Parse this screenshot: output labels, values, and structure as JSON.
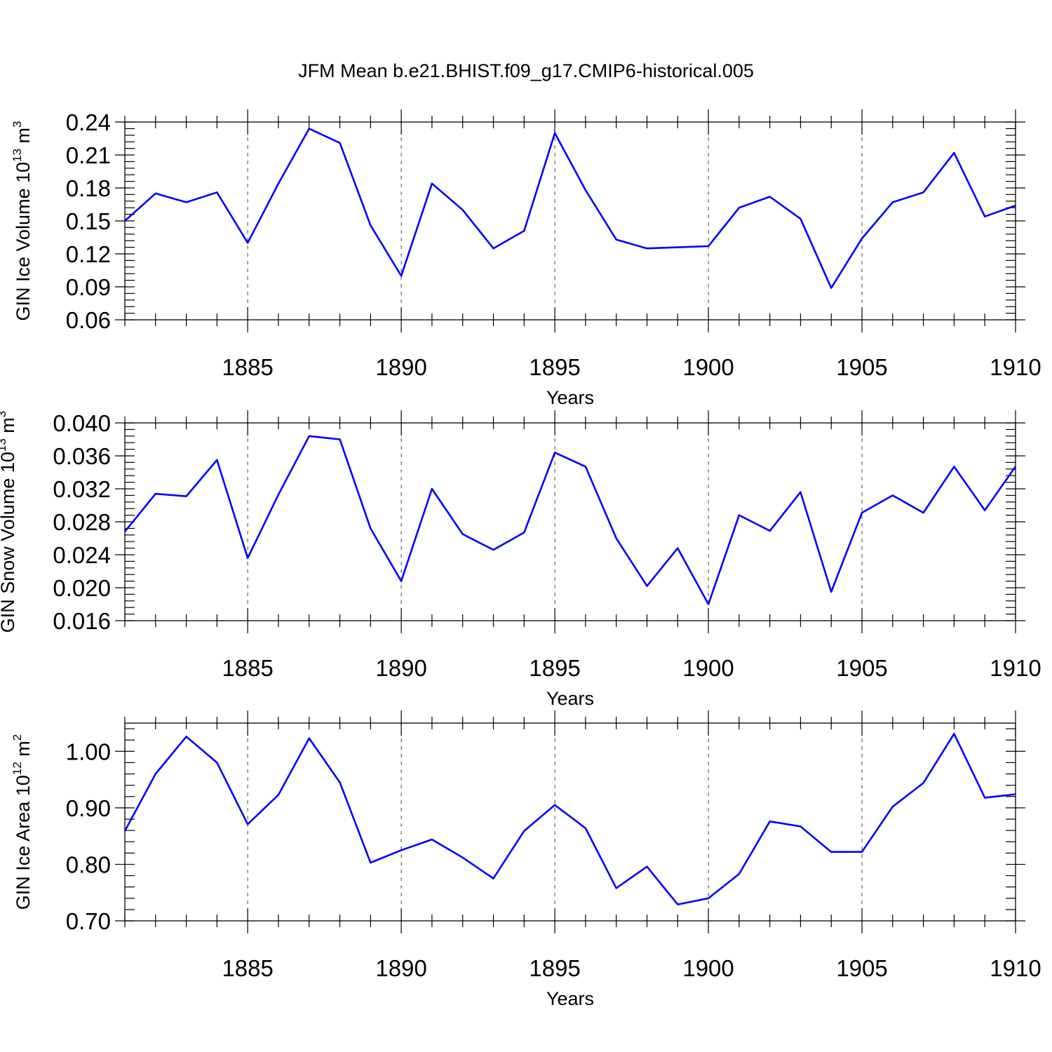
{
  "title": "JFM Mean b.e21.BHIST.f09_g17.CMIP6-historical.005",
  "colors": {
    "line": "#0000ff",
    "axis": "#000000",
    "grid": "#555555"
  },
  "chart_data": [
    {
      "type": "line",
      "ylabel": "GIN Ice Volume 10",
      "ylabel_exp": "13",
      "ylabel_unit": " m",
      "ylabel_unit_exp": "3",
      "xlabel": "Years",
      "xlim": [
        1881,
        1910
      ],
      "ylim": [
        0.06,
        0.24
      ],
      "ytick_values": [
        0.06,
        0.09,
        0.12,
        0.15,
        0.18,
        0.21,
        0.24
      ],
      "ytick_labels": [
        "0.06",
        "0.09",
        "0.12",
        "0.15",
        "0.18",
        "0.21",
        "0.24"
      ],
      "xtick_values": [
        1885,
        1890,
        1895,
        1900,
        1905,
        1910
      ],
      "xtick_labels": [
        "1885",
        "1890",
        "1895",
        "1900",
        "1905",
        "1910"
      ],
      "grid": "vertical dashed at major x ticks",
      "series": [
        {
          "name": "GIN Ice Volume",
          "x": [
            1881,
            1882,
            1883,
            1884,
            1885,
            1886,
            1887,
            1888,
            1889,
            1890,
            1891,
            1892,
            1893,
            1894,
            1895,
            1896,
            1897,
            1898,
            1899,
            1900,
            1901,
            1902,
            1903,
            1904,
            1905,
            1906,
            1907,
            1908,
            1909,
            1910
          ],
          "values": [
            0.15,
            0.175,
            0.167,
            0.176,
            0.13,
            0.184,
            0.234,
            0.221,
            0.146,
            0.1,
            0.184,
            0.16,
            0.125,
            0.141,
            0.23,
            0.178,
            0.133,
            0.125,
            0.126,
            0.127,
            0.162,
            0.172,
            0.152,
            0.089,
            0.134,
            0.167,
            0.176,
            0.212,
            0.154,
            0.164
          ]
        }
      ]
    },
    {
      "type": "line",
      "ylabel": "GIN Snow Volume 10",
      "ylabel_exp": "13",
      "ylabel_unit": " m",
      "ylabel_unit_exp": "3",
      "xlabel": "Years",
      "xlim": [
        1881,
        1910
      ],
      "ylim": [
        0.016,
        0.04
      ],
      "ytick_values": [
        0.016,
        0.02,
        0.024,
        0.028,
        0.032,
        0.036,
        0.04
      ],
      "ytick_labels": [
        "0.016",
        "0.020",
        "0.024",
        "0.028",
        "0.032",
        "0.036",
        "0.040"
      ],
      "xtick_values": [
        1885,
        1890,
        1895,
        1900,
        1905,
        1910
      ],
      "xtick_labels": [
        "1885",
        "1890",
        "1895",
        "1900",
        "1905",
        "1910"
      ],
      "grid": "vertical dashed at major x ticks",
      "series": [
        {
          "name": "GIN Snow Volume",
          "x": [
            1881,
            1882,
            1883,
            1884,
            1885,
            1886,
            1887,
            1888,
            1889,
            1890,
            1891,
            1892,
            1893,
            1894,
            1895,
            1896,
            1897,
            1898,
            1899,
            1900,
            1901,
            1902,
            1903,
            1904,
            1905,
            1906,
            1907,
            1908,
            1909,
            1910
          ],
          "values": [
            0.0268,
            0.0314,
            0.0311,
            0.0355,
            0.0236,
            0.0313,
            0.0384,
            0.038,
            0.0272,
            0.0208,
            0.032,
            0.0265,
            0.0246,
            0.0267,
            0.0364,
            0.0347,
            0.026,
            0.0202,
            0.0248,
            0.018,
            0.0288,
            0.0269,
            0.0316,
            0.0195,
            0.0291,
            0.0312,
            0.0291,
            0.0347,
            0.0294,
            0.0347
          ]
        }
      ]
    },
    {
      "type": "line",
      "ylabel": "GIN Ice Area 10",
      "ylabel_exp": "12",
      "ylabel_unit": " m",
      "ylabel_unit_exp": "2",
      "xlabel": "Years",
      "xlim": [
        1881,
        1910
      ],
      "ylim": [
        0.7,
        1.05
      ],
      "ytick_values": [
        0.7,
        0.8,
        0.9,
        1.0
      ],
      "ytick_labels": [
        "0.70",
        "0.80",
        "0.90",
        "1.00"
      ],
      "xtick_values": [
        1885,
        1890,
        1895,
        1900,
        1905,
        1910
      ],
      "xtick_labels": [
        "1885",
        "1890",
        "1895",
        "1900",
        "1905",
        "1910"
      ],
      "grid": "vertical dashed at major x ticks",
      "series": [
        {
          "name": "GIN Ice Area",
          "x": [
            1881,
            1882,
            1883,
            1884,
            1885,
            1886,
            1887,
            1888,
            1889,
            1890,
            1891,
            1892,
            1893,
            1894,
            1895,
            1896,
            1897,
            1898,
            1899,
            1900,
            1901,
            1902,
            1903,
            1904,
            1905,
            1906,
            1907,
            1908,
            1909,
            1910
          ],
          "values": [
            0.859,
            0.96,
            1.026,
            0.98,
            0.871,
            0.923,
            1.023,
            0.945,
            0.803,
            0.825,
            0.844,
            0.812,
            0.775,
            0.859,
            0.905,
            0.864,
            0.758,
            0.796,
            0.729,
            0.74,
            0.783,
            0.876,
            0.867,
            0.822,
            0.822,
            0.902,
            0.944,
            1.031,
            0.918,
            0.924
          ]
        }
      ]
    }
  ]
}
